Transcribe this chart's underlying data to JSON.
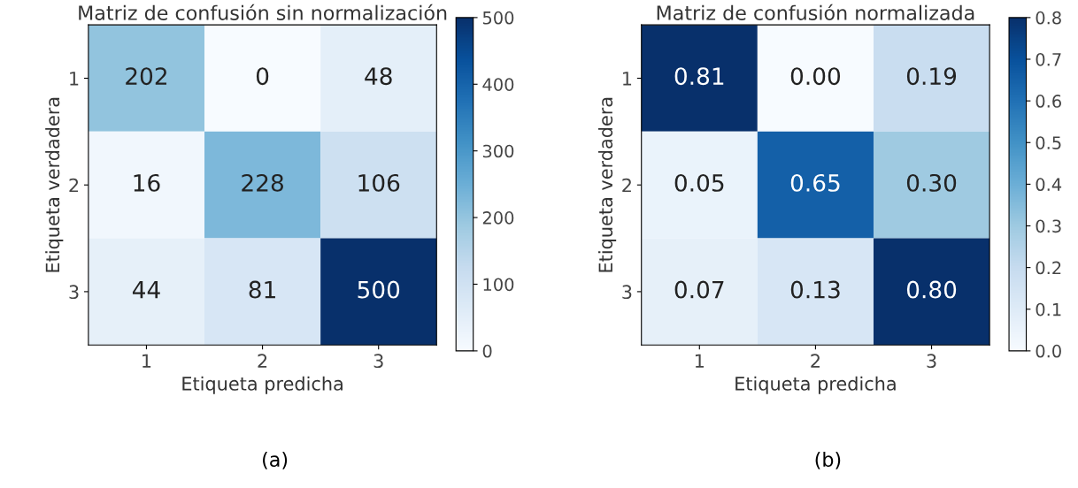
{
  "chart_data": [
    {
      "type": "heatmap",
      "title": "Matriz de confusión sin normalización",
      "xlabel": "Etiqueta predicha",
      "ylabel": "Etiqueta verdadera",
      "categories": [
        "1",
        "2",
        "3"
      ],
      "y_categories": [
        "1",
        "2",
        "3"
      ],
      "cells": [
        [
          202,
          0,
          48
        ],
        [
          16,
          228,
          106
        ],
        [
          44,
          81,
          500
        ]
      ],
      "data_labels": true,
      "clim": [
        0,
        500
      ],
      "cticks": [
        0,
        100,
        200,
        300,
        400,
        500
      ],
      "annotations": [
        "(a)"
      ]
    },
    {
      "type": "heatmap",
      "title": "Matriz de confusión normalizada",
      "xlabel": "Etiqueta predicha",
      "ylabel": "Etiqueta verdadera",
      "categories": [
        "1",
        "2",
        "3"
      ],
      "y_categories": [
        "1",
        "2",
        "3"
      ],
      "cells": [
        [
          0.81,
          0,
          0.19
        ],
        [
          0.05,
          0.65,
          0.3
        ],
        [
          0.07,
          0.13,
          0.8
        ]
      ],
      "cell_labels": [
        [
          "0.81",
          "0.00",
          "0.19"
        ],
        [
          "0.05",
          "0.65",
          "0.30"
        ],
        [
          "0.07",
          "0.13",
          "0.80"
        ]
      ],
      "clim": [
        0,
        0.8
      ],
      "cticks": [
        {
          "value": 0,
          "label": "0.0"
        },
        0.1,
        0.2,
        0.3,
        0.4,
        0.5,
        0.6,
        0.7,
        0.8
      ],
      "annotations": [
        "(b)"
      ]
    }
  ]
}
